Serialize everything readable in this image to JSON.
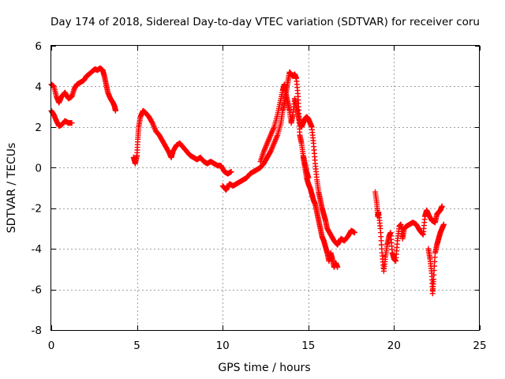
{
  "chart_data": {
    "type": "scatter",
    "title": "Day 174 of 2018, Sidereal Day-to-day VTEC variation (SDTVAR) for receiver coru",
    "xlabel": "GPS time / hours",
    "ylabel": "SDTVAR / TECUs",
    "xlim": [
      0,
      25
    ],
    "ylim": [
      -8,
      6
    ],
    "xticks": [
      0,
      5,
      10,
      15,
      20,
      25
    ],
    "yticks": [
      -8,
      -6,
      -4,
      -2,
      0,
      2,
      4,
      6
    ],
    "xtick_labels": [
      "0",
      "5",
      "10",
      "15",
      "20",
      "25"
    ],
    "ytick_labels": [
      "-8",
      "-6",
      "-4",
      "-2",
      "0",
      "2",
      "4",
      "6"
    ],
    "grid": true,
    "marker": "+",
    "color": "#ff0000",
    "series": [
      {
        "name": "SDTVAR",
        "segments": [
          [
            [
              0.0,
              4.1
            ],
            [
              0.15,
              4.0
            ],
            [
              0.3,
              3.5
            ],
            [
              0.45,
              3.2
            ],
            [
              0.6,
              3.5
            ],
            [
              0.8,
              3.7
            ],
            [
              1.0,
              3.4
            ],
            [
              1.2,
              3.5
            ],
            [
              1.35,
              3.9
            ],
            [
              1.5,
              4.1
            ],
            [
              1.7,
              4.2
            ],
            [
              1.9,
              4.3
            ],
            [
              2.05,
              4.5
            ],
            [
              2.2,
              4.6
            ],
            [
              2.4,
              4.75
            ],
            [
              2.55,
              4.85
            ],
            [
              2.7,
              4.8
            ],
            [
              2.85,
              4.9
            ],
            [
              3.0,
              4.8
            ],
            [
              3.1,
              4.5
            ],
            [
              3.2,
              4.1
            ],
            [
              3.3,
              3.7
            ],
            [
              3.45,
              3.4
            ],
            [
              3.6,
              3.2
            ],
            [
              3.7,
              3.0
            ],
            [
              3.75,
              2.8
            ]
          ],
          [
            [
              0.0,
              2.8
            ],
            [
              0.15,
              2.6
            ],
            [
              0.3,
              2.3
            ],
            [
              0.45,
              2.05
            ],
            [
              0.6,
              2.1
            ],
            [
              0.8,
              2.3
            ],
            [
              1.0,
              2.2
            ],
            [
              1.2,
              2.2
            ]
          ],
          [
            [
              4.8,
              0.5
            ],
            [
              4.9,
              0.2
            ],
            [
              5.0,
              0.6
            ],
            [
              5.05,
              1.4
            ],
            [
              5.1,
              2.0
            ],
            [
              5.2,
              2.5
            ],
            [
              5.35,
              2.8
            ],
            [
              5.5,
              2.7
            ],
            [
              5.7,
              2.5
            ],
            [
              5.9,
              2.2
            ],
            [
              6.1,
              1.8
            ],
            [
              6.3,
              1.6
            ],
            [
              6.5,
              1.3
            ],
            [
              6.7,
              1.0
            ],
            [
              6.9,
              0.7
            ],
            [
              7.0,
              0.5
            ],
            [
              7.1,
              0.8
            ],
            [
              7.3,
              1.1
            ],
            [
              7.5,
              1.2
            ],
            [
              7.7,
              1.0
            ],
            [
              7.9,
              0.8
            ],
            [
              8.1,
              0.6
            ],
            [
              8.3,
              0.5
            ],
            [
              8.5,
              0.4
            ],
            [
              8.7,
              0.5
            ],
            [
              8.9,
              0.3
            ],
            [
              9.1,
              0.2
            ],
            [
              9.3,
              0.3
            ],
            [
              9.5,
              0.2
            ],
            [
              9.7,
              0.1
            ],
            [
              9.9,
              0.1
            ],
            [
              10.1,
              -0.2
            ],
            [
              10.3,
              -0.3
            ],
            [
              10.5,
              -0.2
            ]
          ],
          [
            [
              10.0,
              -0.9
            ],
            [
              10.2,
              -1.1
            ],
            [
              10.4,
              -0.8
            ],
            [
              10.6,
              -0.9
            ],
            [
              10.8,
              -0.8
            ],
            [
              11.0,
              -0.7
            ],
            [
              11.2,
              -0.6
            ],
            [
              11.4,
              -0.5
            ],
            [
              11.6,
              -0.3
            ],
            [
              11.8,
              -0.2
            ],
            [
              12.0,
              -0.1
            ],
            [
              12.2,
              0.0
            ],
            [
              12.4,
              0.2
            ],
            [
              12.6,
              0.5
            ],
            [
              12.8,
              0.8
            ],
            [
              13.0,
              1.2
            ],
            [
              13.2,
              1.6
            ],
            [
              13.4,
              2.2
            ],
            [
              13.5,
              2.8
            ],
            [
              13.6,
              3.2
            ],
            [
              13.7,
              3.7
            ],
            [
              13.8,
              4.2
            ],
            [
              13.9,
              4.7
            ],
            [
              14.0,
              4.6
            ],
            [
              14.1,
              4.5
            ],
            [
              14.2,
              4.6
            ],
            [
              14.3,
              4.4
            ],
            [
              14.4,
              3.5
            ],
            [
              14.45,
              2.5
            ],
            [
              14.5,
              1.6
            ],
            [
              14.6,
              1.2
            ],
            [
              14.7,
              0.6
            ],
            [
              14.8,
              0.2
            ],
            [
              14.9,
              -0.2
            ],
            [
              15.0,
              -0.5
            ]
          ],
          [
            [
              12.2,
              0.3
            ],
            [
              12.4,
              0.8
            ],
            [
              12.6,
              1.2
            ],
            [
              12.8,
              1.6
            ],
            [
              13.0,
              2.0
            ],
            [
              13.2,
              2.6
            ],
            [
              13.35,
              3.2
            ],
            [
              13.5,
              3.8
            ],
            [
              13.6,
              4.1
            ],
            [
              13.7,
              3.6
            ],
            [
              13.8,
              3.2
            ],
            [
              13.9,
              2.8
            ],
            [
              14.0,
              2.2
            ],
            [
              14.1,
              2.6
            ],
            [
              14.2,
              3.4
            ],
            [
              14.3,
              3.0
            ],
            [
              14.4,
              2.6
            ],
            [
              14.5,
              2.2
            ],
            [
              14.6,
              2.0
            ],
            [
              14.7,
              2.2
            ],
            [
              14.8,
              2.4
            ],
            [
              14.9,
              2.5
            ],
            [
              15.0,
              2.4
            ],
            [
              15.1,
              2.2
            ],
            [
              15.2,
              2.0
            ],
            [
              15.3,
              1.2
            ],
            [
              15.4,
              0.2
            ],
            [
              15.5,
              -0.6
            ],
            [
              15.6,
              -1.2
            ],
            [
              15.7,
              -1.6
            ],
            [
              15.8,
              -2.0
            ],
            [
              15.9,
              -2.3
            ],
            [
              16.0,
              -2.6
            ],
            [
              16.1,
              -3.0
            ],
            [
              16.3,
              -3.3
            ],
            [
              16.5,
              -3.6
            ],
            [
              16.7,
              -3.8
            ],
            [
              16.9,
              -3.5
            ],
            [
              17.1,
              -3.6
            ],
            [
              17.3,
              -3.4
            ],
            [
              17.5,
              -3.1
            ],
            [
              17.7,
              -3.2
            ]
          ],
          [
            [
              14.7,
              0.5
            ],
            [
              14.8,
              0.0
            ],
            [
              14.9,
              -0.5
            ],
            [
              15.0,
              -0.8
            ],
            [
              15.1,
              -1.0
            ],
            [
              15.2,
              -1.3
            ],
            [
              15.3,
              -1.6
            ],
            [
              15.4,
              -1.8
            ],
            [
              15.5,
              -2.2
            ],
            [
              15.6,
              -2.6
            ],
            [
              15.7,
              -3.0
            ],
            [
              15.8,
              -3.4
            ],
            [
              15.9,
              -3.6
            ],
            [
              16.0,
              -3.9
            ],
            [
              16.1,
              -4.2
            ],
            [
              16.2,
              -4.6
            ],
            [
              16.3,
              -4.2
            ],
            [
              16.4,
              -4.5
            ],
            [
              16.5,
              -4.9
            ],
            [
              16.6,
              -4.7
            ],
            [
              16.7,
              -4.9
            ]
          ],
          [
            [
              18.9,
              -1.2
            ],
            [
              19.0,
              -1.8
            ],
            [
              19.05,
              -2.4
            ],
            [
              19.1,
              -2.2
            ],
            [
              19.2,
              -3.0
            ],
            [
              19.3,
              -4.2
            ],
            [
              19.4,
              -5.1
            ],
            [
              19.5,
              -4.4
            ],
            [
              19.6,
              -3.8
            ],
            [
              19.7,
              -3.4
            ],
            [
              19.8,
              -3.2
            ],
            [
              19.9,
              -4.2
            ],
            [
              20.0,
              -4.5
            ],
            [
              20.1,
              -4.6
            ],
            [
              20.2,
              -3.6
            ],
            [
              20.3,
              -2.9
            ],
            [
              20.4,
              -2.8
            ],
            [
              20.5,
              -3.5
            ],
            [
              20.6,
              -3.0
            ],
            [
              20.7,
              -2.9
            ],
            [
              20.9,
              -2.8
            ],
            [
              21.1,
              -2.7
            ],
            [
              21.3,
              -2.8
            ],
            [
              21.5,
              -3.1
            ],
            [
              21.7,
              -3.3
            ],
            [
              21.8,
              -2.4
            ],
            [
              21.9,
              -2.1
            ],
            [
              22.0,
              -2.3
            ],
            [
              22.2,
              -2.6
            ],
            [
              22.4,
              -2.7
            ],
            [
              22.5,
              -2.3
            ],
            [
              22.6,
              -2.2
            ],
            [
              22.7,
              -2.1
            ],
            [
              22.8,
              -1.9
            ]
          ],
          [
            [
              22.0,
              -4.0
            ],
            [
              22.1,
              -4.5
            ],
            [
              22.2,
              -5.2
            ],
            [
              22.25,
              -6.2
            ],
            [
              22.3,
              -5.5
            ],
            [
              22.4,
              -4.2
            ],
            [
              22.5,
              -3.8
            ],
            [
              22.6,
              -3.5
            ],
            [
              22.7,
              -3.2
            ],
            [
              22.8,
              -3.0
            ],
            [
              22.9,
              -2.8
            ]
          ]
        ]
      }
    ]
  }
}
